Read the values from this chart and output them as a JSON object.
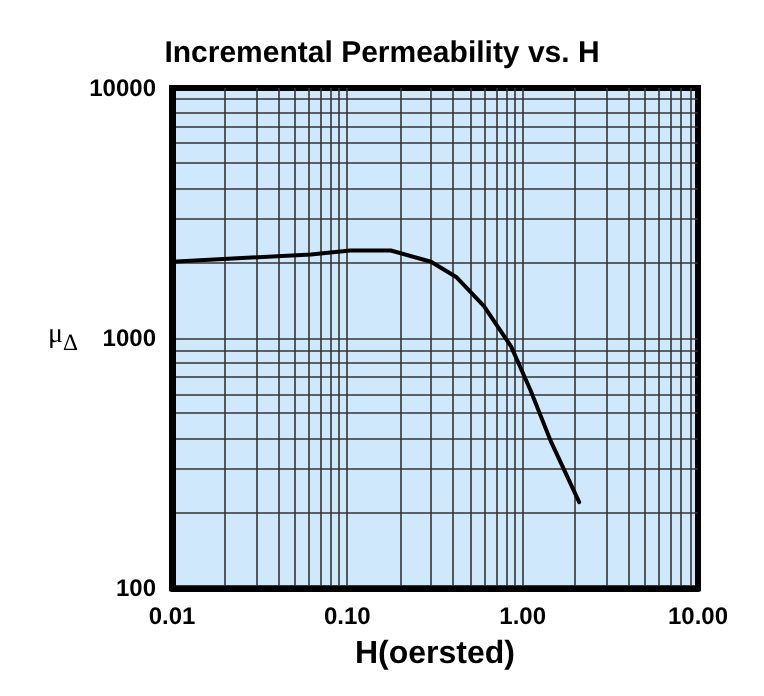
{
  "chart_data": {
    "type": "line",
    "title": "Incremental Permeability vs. H",
    "xlabel": "H(oersted)",
    "ylabel": "μ$_{Δ}$",
    "log": "xy",
    "grid": true,
    "marker": "none",
    "line_style": "solid",
    "xlim": [
      0.01,
      10
    ],
    "ylim": [
      100,
      10000
    ],
    "xticks": [
      {
        "value": 0.01,
        "label": "0.01"
      },
      {
        "value": 0.02,
        "label": null
      },
      {
        "value": 0.03,
        "label": null
      },
      {
        "value": 0.04,
        "label": null
      },
      {
        "value": 0.05,
        "label": null
      },
      {
        "value": 0.06,
        "label": null
      },
      {
        "value": 0.07,
        "label": null
      },
      {
        "value": 0.08,
        "label": null
      },
      {
        "value": 0.09,
        "label": null
      },
      {
        "value": 0.1,
        "label": "0.10"
      },
      {
        "value": 0.2,
        "label": null
      },
      {
        "value": 0.3,
        "label": null
      },
      {
        "value": 0.4,
        "label": null
      },
      {
        "value": 0.5,
        "label": null
      },
      {
        "value": 0.6,
        "label": null
      },
      {
        "value": 0.7,
        "label": null
      },
      {
        "value": 0.8,
        "label": null
      },
      {
        "value": 0.9,
        "label": null
      },
      {
        "value": 1,
        "label": "1.00"
      },
      {
        "value": 2,
        "label": null
      },
      {
        "value": 3,
        "label": null
      },
      {
        "value": 4,
        "label": null
      },
      {
        "value": 5,
        "label": null
      },
      {
        "value": 6,
        "label": null
      },
      {
        "value": 7,
        "label": null
      },
      {
        "value": 8,
        "label": null
      },
      {
        "value": 9,
        "label": null
      },
      {
        "value": 10,
        "label": "10.00"
      }
    ],
    "yticks": [
      100,
      {
        "value": 200,
        "label": null
      },
      {
        "value": 300,
        "label": null
      },
      {
        "value": 400,
        "label": null
      },
      {
        "value": 500,
        "label": null
      },
      {
        "value": 600,
        "label": null
      },
      {
        "value": 700,
        "label": null
      },
      {
        "value": 800,
        "label": null
      },
      {
        "value": 900,
        "label": null
      },
      1000,
      {
        "value": 2000,
        "label": null
      },
      {
        "value": 3000,
        "label": null
      },
      {
        "value": 4000,
        "label": null
      },
      {
        "value": 5000,
        "label": null
      },
      {
        "value": 6000,
        "label": null
      },
      {
        "value": 7000,
        "label": null
      },
      {
        "value": 8000,
        "label": null
      },
      {
        "value": 9000,
        "label": null
      },
      10000
    ],
    "series": [
      {
        "color": "#000000",
        "x": [
          0.01,
          0.062,
          0.104,
          0.177,
          0.3,
          0.42,
          0.6,
          0.86,
          1.11,
          1.44,
          2.1
        ],
        "values": [
          2020,
          2160,
          2240,
          2240,
          2020,
          1750,
          1345,
          925,
          617,
          390,
          221
        ]
      }
    ]
  }
}
